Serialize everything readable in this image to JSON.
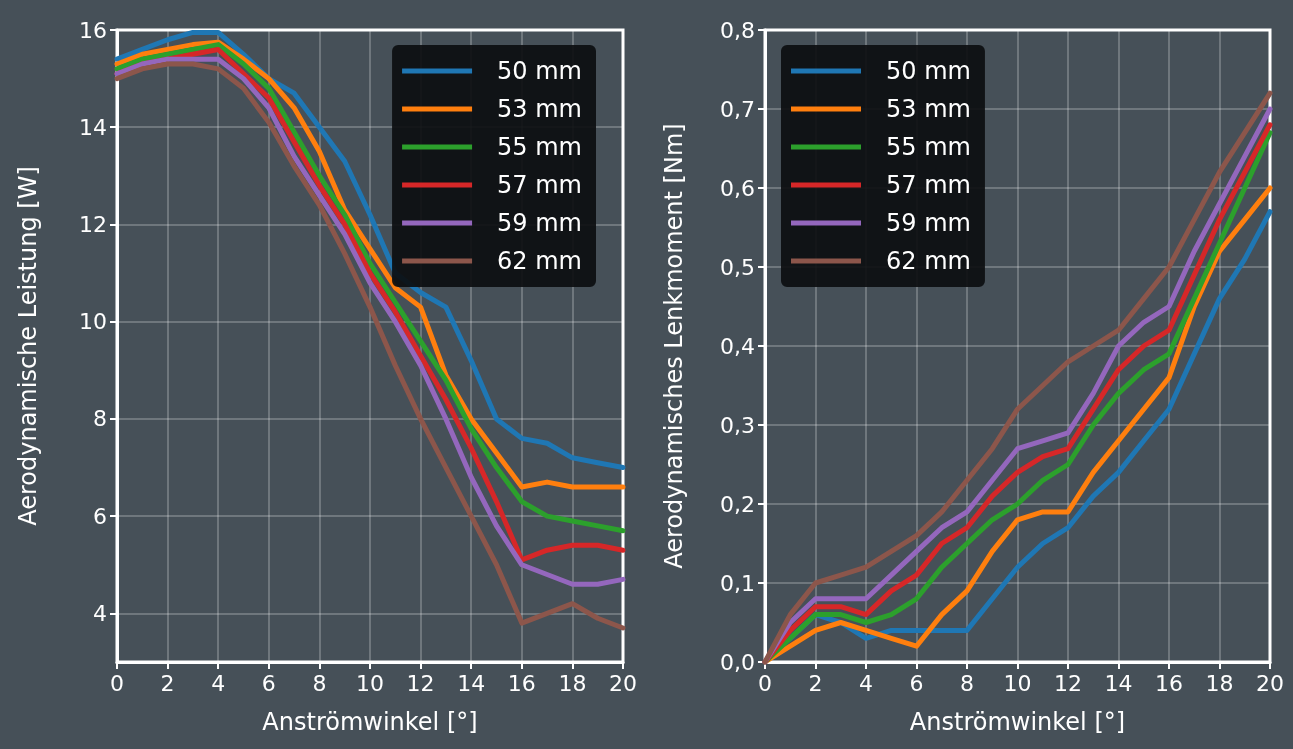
{
  "chart_data": [
    {
      "type": "line",
      "xlabel": "Anströmwinkel [°]",
      "ylabel": "Aerodynamische Leistung [W]",
      "x": [
        0,
        1,
        2,
        3,
        4,
        5,
        6,
        7,
        8,
        9,
        10,
        11,
        12,
        13,
        14,
        15,
        16,
        17,
        18,
        19,
        20
      ],
      "xlim": [
        0,
        20
      ],
      "xticks": [
        0,
        2,
        4,
        6,
        8,
        10,
        12,
        14,
        16,
        18,
        20
      ],
      "ylim": [
        3,
        16
      ],
      "yticks": [
        4,
        6,
        8,
        10,
        12,
        14,
        16
      ],
      "grid": true,
      "legend": "top right",
      "marker": "none",
      "line_style": "solid",
      "series": [
        {
          "name": "50 mm",
          "color": "#1f77b4",
          "values": [
            15.4,
            15.6,
            15.8,
            15.95,
            15.95,
            15.5,
            15.0,
            14.7,
            14.0,
            13.3,
            12.2,
            11.0,
            10.6,
            10.3,
            9.2,
            8.0,
            7.6,
            7.5,
            7.2,
            7.1,
            7.0
          ]
        },
        {
          "name": "53 mm",
          "color": "#ff7f0e",
          "values": [
            15.3,
            15.5,
            15.6,
            15.7,
            15.75,
            15.4,
            15.0,
            14.4,
            13.5,
            12.3,
            11.5,
            10.7,
            10.3,
            8.9,
            8.0,
            7.3,
            6.6,
            6.7,
            6.6,
            6.6,
            6.6
          ]
        },
        {
          "name": "55 mm",
          "color": "#2ca02c",
          "values": [
            15.2,
            15.4,
            15.5,
            15.6,
            15.7,
            15.3,
            14.8,
            13.9,
            13.0,
            12.2,
            11.2,
            10.4,
            9.6,
            8.8,
            7.8,
            7.0,
            6.3,
            6.0,
            5.9,
            5.8,
            5.7
          ]
        },
        {
          "name": "57 mm",
          "color": "#d62728",
          "values": [
            15.1,
            15.3,
            15.4,
            15.5,
            15.6,
            15.1,
            14.6,
            13.7,
            12.8,
            12.0,
            11.0,
            10.2,
            9.3,
            8.4,
            7.4,
            6.3,
            5.1,
            5.3,
            5.4,
            5.4,
            5.3
          ]
        },
        {
          "name": "59 mm",
          "color": "#9467bd",
          "values": [
            15.1,
            15.3,
            15.4,
            15.4,
            15.4,
            15.0,
            14.4,
            13.4,
            12.6,
            11.8,
            10.8,
            10.0,
            9.1,
            8.0,
            6.8,
            5.8,
            5.0,
            4.8,
            4.6,
            4.6,
            4.7
          ]
        },
        {
          "name": "62 mm",
          "color": "#8c564b",
          "values": [
            15.0,
            15.2,
            15.3,
            15.3,
            15.2,
            14.8,
            14.1,
            13.2,
            12.4,
            11.4,
            10.3,
            9.1,
            8.0,
            7.0,
            6.0,
            5.0,
            3.8,
            4.0,
            4.2,
            3.9,
            3.7
          ]
        }
      ]
    },
    {
      "type": "line",
      "xlabel": "Anströmwinkel [°]",
      "ylabel": "Aerodynamisches Lenkmoment [Nm]",
      "x": [
        0,
        1,
        2,
        3,
        4,
        5,
        6,
        7,
        8,
        9,
        10,
        11,
        12,
        13,
        14,
        15,
        16,
        17,
        18,
        19,
        20
      ],
      "xlim": [
        0,
        20
      ],
      "xticks": [
        0,
        2,
        4,
        6,
        8,
        10,
        12,
        14,
        16,
        18,
        20
      ],
      "ylim": [
        0,
        0.8
      ],
      "yticks": [
        {
          "value": 0,
          "label": "0,0"
        },
        {
          "value": 0.1,
          "label": "0,1"
        },
        {
          "value": 0.2,
          "label": "0,2"
        },
        {
          "value": 0.3,
          "label": "0,3"
        },
        {
          "value": 0.4,
          "label": "0,4"
        },
        {
          "value": 0.5,
          "label": "0,5"
        },
        {
          "value": 0.6,
          "label": "0,6"
        },
        {
          "value": 0.7,
          "label": "0,7"
        },
        {
          "value": 0.8,
          "label": "0,8"
        }
      ],
      "grid": true,
      "legend": "top left",
      "marker": "none",
      "line_style": "solid",
      "series": [
        {
          "name": "50 mm",
          "color": "#1f77b4",
          "values": [
            0,
            null,
            0.06,
            0.05,
            0.03,
            0.04,
            0.04,
            0.04,
            0.04,
            0.08,
            0.12,
            0.15,
            0.17,
            0.21,
            0.24,
            0.28,
            0.32,
            0.39,
            0.46,
            0.51,
            0.57
          ]
        },
        {
          "name": "53 mm",
          "color": "#ff7f0e",
          "values": [
            0,
            0.02,
            0.04,
            0.05,
            0.04,
            0.03,
            0.02,
            0.06,
            0.09,
            0.14,
            0.18,
            0.19,
            0.19,
            0.24,
            0.28,
            0.32,
            0.36,
            0.45,
            0.52,
            0.56,
            0.6
          ]
        },
        {
          "name": "55 mm",
          "color": "#2ca02c",
          "values": [
            0,
            0.03,
            0.06,
            0.06,
            0.05,
            0.06,
            0.08,
            0.12,
            0.15,
            0.18,
            0.2,
            0.23,
            0.25,
            0.3,
            0.34,
            0.37,
            0.39,
            0.46,
            0.53,
            0.6,
            0.67
          ]
        },
        {
          "name": "57 mm",
          "color": "#d62728",
          "values": [
            0,
            0.04,
            0.07,
            0.07,
            0.06,
            0.09,
            0.11,
            0.15,
            0.17,
            0.21,
            0.24,
            0.26,
            0.27,
            0.32,
            0.37,
            0.4,
            0.42,
            0.49,
            0.56,
            0.62,
            0.68
          ]
        },
        {
          "name": "59 mm",
          "color": "#9467bd",
          "values": [
            0,
            0.05,
            0.08,
            0.08,
            0.08,
            0.11,
            0.14,
            0.17,
            0.19,
            0.23,
            0.27,
            0.28,
            0.29,
            0.34,
            0.4,
            0.43,
            0.45,
            0.52,
            0.58,
            0.64,
            0.7
          ]
        },
        {
          "name": "62 mm",
          "color": "#8c564b",
          "values": [
            0,
            0.06,
            0.1,
            0.11,
            0.12,
            0.14,
            0.16,
            0.19,
            0.23,
            0.27,
            0.32,
            0.35,
            0.38,
            0.4,
            0.42,
            0.46,
            0.5,
            0.56,
            0.62,
            0.67,
            0.72
          ]
        }
      ]
    }
  ]
}
